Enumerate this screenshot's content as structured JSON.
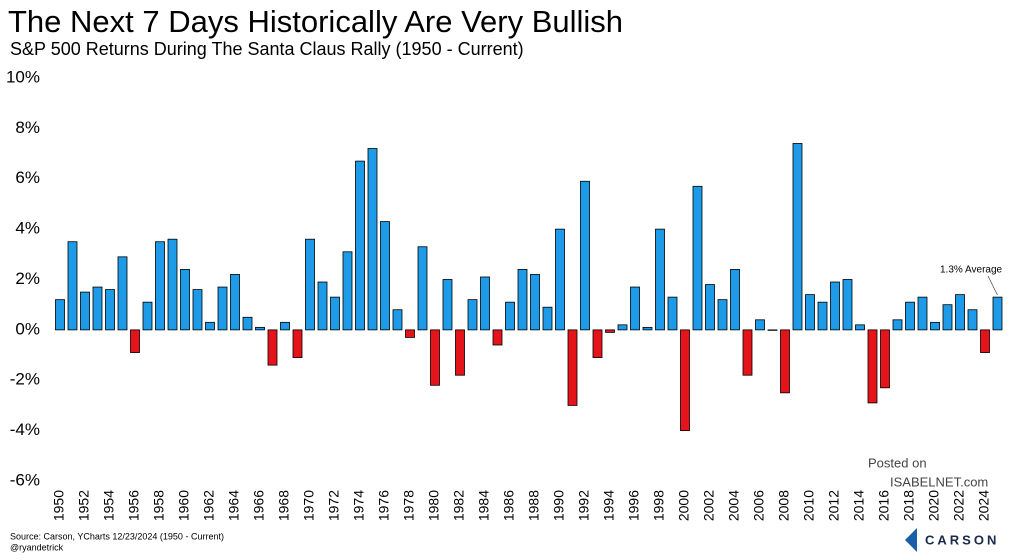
{
  "chart_data": {
    "type": "bar",
    "title": "The Next 7 Days Historically Are Very Bullish",
    "subtitle": "S&P 500 Returns During The Santa Claus Rally (1950 - Current)",
    "categories": [
      "1950",
      null,
      "1952",
      null,
      "1954",
      null,
      "1956",
      null,
      "1958",
      null,
      "1960",
      null,
      "1962",
      null,
      "1964",
      null,
      "1966",
      null,
      "1968",
      null,
      "1970",
      null,
      "1972",
      null,
      "1974",
      null,
      "1976",
      null,
      "1978",
      null,
      "1980",
      null,
      "1982",
      null,
      "1984",
      null,
      "1986",
      null,
      "1988",
      null,
      "1990",
      null,
      "1992",
      null,
      "1994",
      null,
      "1996",
      null,
      "1998",
      null,
      "2000",
      null,
      "2002",
      null,
      "2004",
      null,
      "2006",
      null,
      "2008",
      null,
      "2010",
      null,
      "2012",
      null,
      "2014",
      null,
      "2016",
      null,
      "2018",
      null,
      "2020",
      null,
      "2022",
      null,
      "2024",
      null
    ],
    "values": [
      1.2,
      3.5,
      1.5,
      1.7,
      1.6,
      2.9,
      -0.9,
      1.1,
      3.5,
      3.6,
      2.4,
      1.6,
      0.3,
      1.7,
      2.2,
      0.5,
      0.1,
      -1.4,
      0.3,
      -1.1,
      3.6,
      1.9,
      1.3,
      3.1,
      6.7,
      7.2,
      4.3,
      0.8,
      -0.3,
      3.3,
      -2.2,
      2.0,
      -1.8,
      1.2,
      2.1,
      -0.6,
      1.1,
      2.4,
      2.2,
      0.9,
      4.0,
      -3.0,
      5.9,
      -1.1,
      -0.1,
      0.2,
      1.7,
      0.1,
      4.0,
      1.3,
      -4.0,
      5.7,
      1.8,
      1.2,
      2.4,
      -1.8,
      0.4,
      0.0,
      -2.5,
      7.4,
      1.4,
      1.1,
      1.9,
      2.0,
      0.2,
      -2.9,
      -2.3,
      0.4,
      1.1,
      1.3,
      0.3,
      1.0,
      1.4,
      0.8,
      -0.9,
      1.3
    ],
    "colors": {
      "positive": "#1d9be8",
      "negative": "#e5141b"
    },
    "ylim": [
      -6,
      10
    ],
    "yticks": [
      {
        "value": -6,
        "label": "-6%"
      },
      {
        "value": -4,
        "label": "-4%"
      },
      {
        "value": -2,
        "label": "-2%"
      },
      {
        "value": 0,
        "label": "0%"
      },
      {
        "value": 2,
        "label": "2%"
      },
      {
        "value": 4,
        "label": "4%"
      },
      {
        "value": 6,
        "label": "6%"
      },
      {
        "value": 8,
        "label": "8%"
      },
      {
        "value": 10,
        "label": "10%"
      }
    ],
    "grid": false,
    "annotation": "1.3% Average",
    "source": "Source: Carson, YCharts 12/23/2024 (1950 - Current)",
    "handle": "@ryandetrick",
    "watermark": [
      "Posted on",
      "ISABELNET.com"
    ],
    "logo": "CARSON"
  }
}
